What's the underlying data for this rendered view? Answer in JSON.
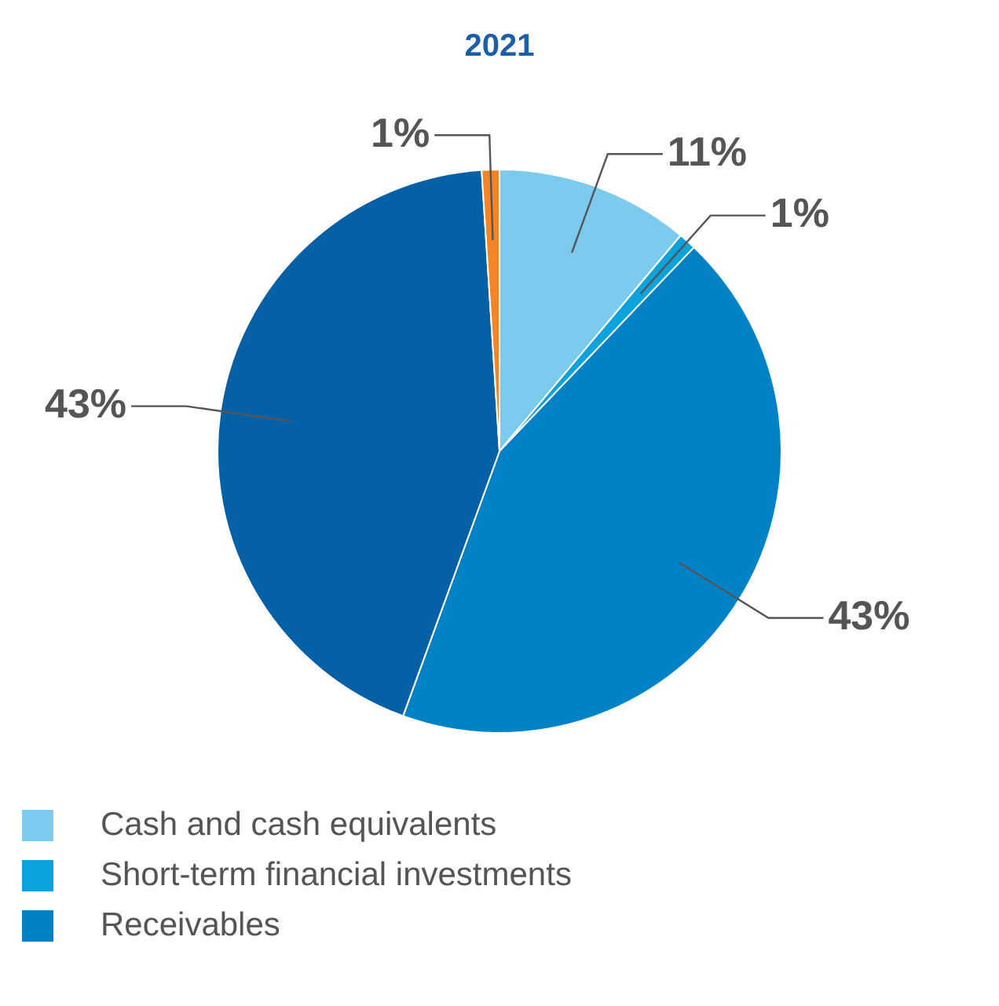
{
  "chart_data": {
    "type": "pie",
    "title": "2021",
    "categories": [
      "Cash and cash equivalents",
      "Short-term financial investments",
      "Receivables",
      null,
      null
    ],
    "values": [
      11,
      1,
      43,
      43,
      1
    ],
    "colors": [
      "#7ccbef",
      "#0aa3dd",
      "#0282c6",
      "#0560a6",
      "#f58426"
    ],
    "value_labels": [
      "11%",
      "1%",
      "43%",
      "43%",
      "1%"
    ],
    "legend": "bottom"
  }
}
